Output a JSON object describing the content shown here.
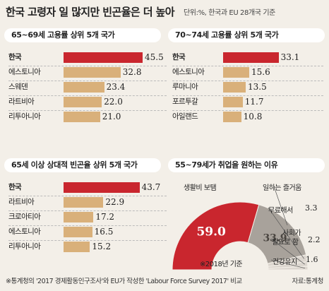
{
  "title": "한국 고령자 일 많지만 빈곤율은 더 높아",
  "unit_note": "단위:%, 한국과 EU 28개국 기준",
  "footnote": "※통계청의 '2017 경제활동인구조사'와 EU가 작성한 'Labour Force Survey 2017' 비교",
  "source": "자료:통계청",
  "colors": {
    "highlight": "#c9262e",
    "bar": "#d9b07a",
    "gray": "#a8a29b",
    "light": "#dcd6cf"
  },
  "chart_data": [
    {
      "type": "bar",
      "title": "65~69세 고용률 상위 5개 국가",
      "categories": [
        "한국",
        "에스토니아",
        "스웨덴",
        "라트비아",
        "리투아니아"
      ],
      "values": [
        45.5,
        32.8,
        23.4,
        22.0,
        21.0
      ],
      "value_labels": [
        "45.5",
        "32.8",
        "23.4",
        "22.0",
        "21.0"
      ],
      "highlight_index": 0
    },
    {
      "type": "bar",
      "title": "70~74세 고용률 상위 5개 국가",
      "categories": [
        "한국",
        "에스토니아",
        "루마니아",
        "포르투갈",
        "아일랜드"
      ],
      "values": [
        33.1,
        15.6,
        13.5,
        11.7,
        10.8
      ],
      "value_labels": [
        "33.1",
        "15.6",
        "13.5",
        "11.7",
        "10.8"
      ],
      "highlight_index": 0
    },
    {
      "type": "bar",
      "title": "65세 이상 상대적 빈곤율 상위 5개 국가",
      "categories": [
        "한국",
        "라트비아",
        "크로아티아",
        "에스토니아",
        "리투아니아"
      ],
      "values": [
        43.7,
        22.9,
        17.2,
        16.5,
        15.2
      ],
      "value_labels": [
        "43.7",
        "22.9",
        "17.2",
        "16.5",
        "15.2"
      ],
      "highlight_index": 0
    },
    {
      "type": "pie",
      "title": "55~79세가 취업을 원하는 이유",
      "note": "※2018년 기준",
      "slices": [
        {
          "label": "생활비 보탬",
          "value": 59.0,
          "value_label": "59.0"
        },
        {
          "label": "일하는 즐거움",
          "value": 33.9,
          "value_label": "33.9"
        },
        {
          "label": "무료해서",
          "value": 3.3,
          "value_label": "3.3"
        },
        {
          "label": "사회가 필요로 함",
          "label_lines": [
            "사회가",
            "필요로 함"
          ],
          "value": 2.2,
          "value_label": "2.2"
        },
        {
          "label": "건강유지",
          "value": 1.6,
          "value_label": "1.6"
        }
      ]
    }
  ]
}
